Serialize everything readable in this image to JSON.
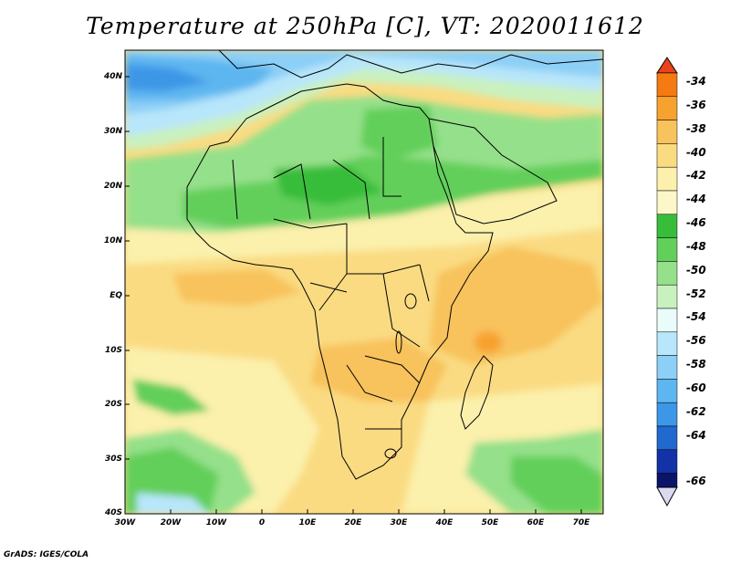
{
  "title": "Temperature at 250hPa [C], VT: 2020011612",
  "credit": "GrADS: IGES/COLA",
  "lat_ticks": [
    "40N",
    "30N",
    "20N",
    "10N",
    "EQ",
    "10S",
    "20S",
    "30S",
    "40S"
  ],
  "lon_ticks": [
    "30W",
    "20W",
    "10W",
    "0",
    "10E",
    "20E",
    "30E",
    "40E",
    "50E",
    "60E",
    "70E"
  ],
  "colorbar": {
    "labels": [
      "-34",
      "-36",
      "-38",
      "-40",
      "-42",
      "-44",
      "-46",
      "-48",
      "-50",
      "-52",
      "-54",
      "-56",
      "-58",
      "-60",
      "-62",
      "-64",
      "-66"
    ],
    "colors": [
      "#e8431a",
      "#f57a12",
      "#f7a22f",
      "#f8c25c",
      "#fadb82",
      "#fbf0ac",
      "#37bd3a",
      "#62cf5a",
      "#95e08a",
      "#c9f1bf",
      "#e9fcf9",
      "#b8e6fa",
      "#8ccff7",
      "#5db6f0",
      "#3c97e6",
      "#2168cf",
      "#1432a8",
      "#0a1469",
      "#dcd8f0"
    ]
  },
  "map": {
    "extent": {
      "lon": [
        -30,
        75
      ],
      "lat": [
        -40,
        45
      ]
    },
    "field": "Temperature at 250hPa",
    "units": "C",
    "valid_time": "2020011612"
  }
}
